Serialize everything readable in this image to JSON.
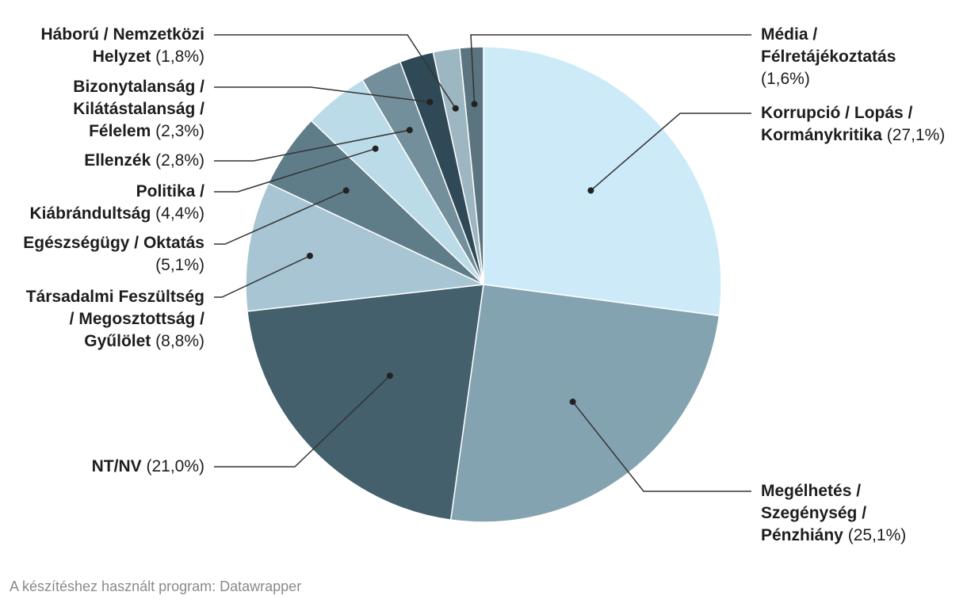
{
  "credit": "A készítéshez használt program: Datawrapper",
  "chart_data": {
    "type": "pie",
    "title": "",
    "slices": [
      {
        "name": "Korrupció / Lopás / Kormánykritika",
        "value": 27.1,
        "value_label": "(27,1%)",
        "color": "#cdeaf9"
      },
      {
        "name": "Megélhetés / Szegénység / Pénzhiány",
        "value": 25.1,
        "value_label": "(25,1%)",
        "color": "#84a3b0"
      },
      {
        "name": "NT/NV",
        "value": 21.0,
        "value_label": "(21,0%)",
        "color": "#43606c"
      },
      {
        "name": "Társadalmi Feszültség / Megosztottság / Gyűlölet",
        "value": 8.8,
        "value_label": "(8,8%)",
        "color": "#a7c5d3"
      },
      {
        "name": "Egészségügy / Oktatás",
        "value": 5.1,
        "value_label": "(5,1%)",
        "color": "#5e7d89"
      },
      {
        "name": "Politika / Kiábrándultság",
        "value": 4.4,
        "value_label": "(4,4%)",
        "color": "#bcdbe8"
      },
      {
        "name": "Ellenzék",
        "value": 2.8,
        "value_label": "(2,8%)",
        "color": "#738f9b"
      },
      {
        "name": "Bizonytalanság / Kilátástalanság / Félelem",
        "value": 2.3,
        "value_label": "(2,3%)",
        "color": "#2f4a56"
      },
      {
        "name": "Háború / Nemzetközi Helyzet",
        "value": 1.8,
        "value_label": "(1,8%)",
        "color": "#9cb6c2"
      },
      {
        "name": "Média / Félretájékoztatás",
        "value": 1.6,
        "value_label": "(1,6%)",
        "color": "#5a7480"
      }
    ]
  },
  "labels": [
    {
      "lines": [
        "Korrupció / Lopás /",
        "Kormánykritika"
      ],
      "pct": "(27,1%)"
    },
    {
      "lines": [
        "Megélhetés /",
        "Szegénység /",
        "Pénzhiány"
      ],
      "pct": "(25,1%)"
    },
    {
      "lines": [
        "NT/NV"
      ],
      "pct": "(21,0%)"
    },
    {
      "lines": [
        "Társadalmi Feszültség",
        "/ Megosztottság /",
        "Gyűlölet"
      ],
      "pct": "(8,8%)"
    },
    {
      "lines": [
        "Egészségügy / Oktatás"
      ],
      "pct": "(5,1%)",
      "pct_newline": true
    },
    {
      "lines": [
        "Politika /",
        "Kiábrándultság"
      ],
      "pct": "(4,4%)"
    },
    {
      "lines": [
        "Ellenzék"
      ],
      "pct": "(2,8%)"
    },
    {
      "lines": [
        "Bizonytalanság /",
        "Kilátástalanság /",
        "Félelem"
      ],
      "pct": "(2,3%)"
    },
    {
      "lines": [
        "Háború / Nemzetközi",
        "Helyzet"
      ],
      "pct": "(1,8%)"
    },
    {
      "lines": [
        "Média /",
        "Félretájékoztatás"
      ],
      "pct": "(1,6%)",
      "pct_newline": true
    }
  ]
}
